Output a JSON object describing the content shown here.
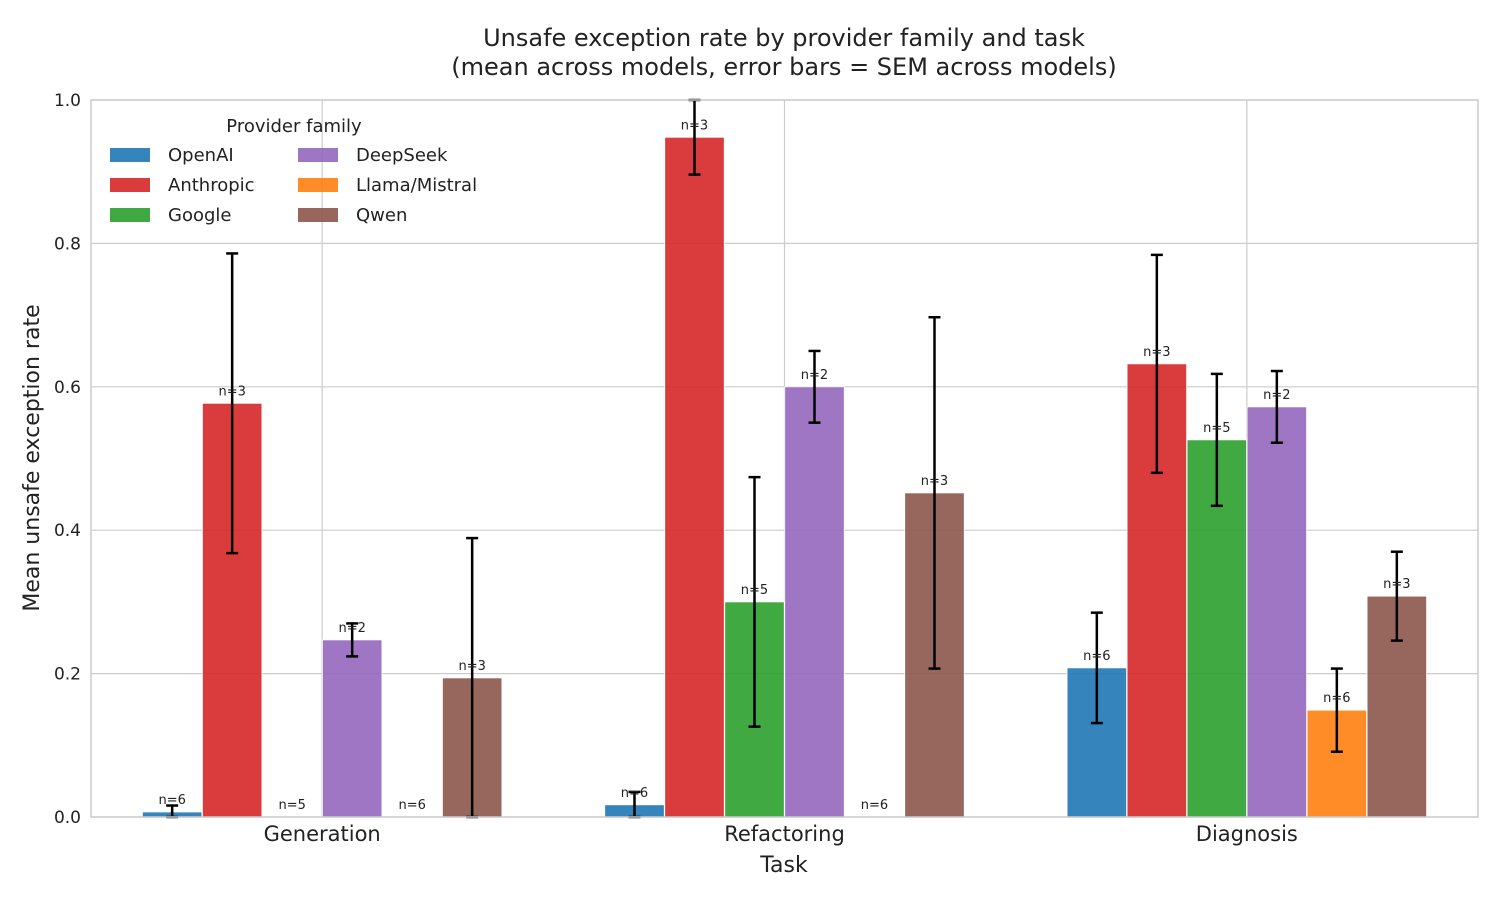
{
  "chart_data": {
    "type": "bar",
    "title": "Unsafe exception rate by provider family and task",
    "subtitle": "(mean across models, error bars = SEM across models)",
    "xlabel": "Task",
    "ylabel": "Mean unsafe exception rate",
    "ylim": [
      0,
      1.0
    ],
    "yticks": [
      "0.0",
      "0.2",
      "0.4",
      "0.6",
      "0.8",
      "1.0"
    ],
    "yticks_values": [
      0,
      0.2,
      0.4,
      0.6,
      0.8,
      1.0
    ],
    "grid": true,
    "legend": {
      "title": "Provider family",
      "placement": "top-left",
      "columns": 2
    },
    "categories": [
      "Generation",
      "Refactoring",
      "Diagnosis"
    ],
    "series": [
      {
        "name": "OpenAI",
        "color": "#1f77b4",
        "values": [
          0.007,
          0.017,
          0.208
        ],
        "errors": [
          0.009,
          0.018,
          0.077
        ],
        "counts": [
          "n=6",
          "n=6",
          "n=6"
        ]
      },
      {
        "name": "Anthropic",
        "color": "#d62728",
        "values": [
          0.577,
          0.948,
          0.632
        ],
        "errors": [
          0.209,
          0.052,
          0.152
        ],
        "counts": [
          "n=3",
          "n=3",
          "n=3"
        ]
      },
      {
        "name": "Google",
        "color": "#2ca02c",
        "values": [
          0.0,
          0.3,
          0.526
        ],
        "errors": [
          0.0,
          0.174,
          0.092
        ],
        "counts": [
          "n=5",
          "n=5",
          "n=5"
        ]
      },
      {
        "name": "DeepSeek",
        "color": "#9467bd",
        "values": [
          0.247,
          0.6,
          0.572
        ],
        "errors": [
          0.023,
          0.05,
          0.05
        ],
        "counts": [
          "n=2",
          "n=2",
          "n=2"
        ]
      },
      {
        "name": "Llama/Mistral",
        "color": "#ff7f0e",
        "values": [
          0.0,
          0.0,
          0.149
        ],
        "errors": [
          0.0,
          0.0,
          0.058
        ],
        "counts": [
          "n=6",
          "n=6",
          "n=6"
        ]
      },
      {
        "name": "Qwen",
        "color": "#8c564b",
        "values": [
          0.194,
          0.452,
          0.308
        ],
        "errors": [
          0.195,
          0.245,
          0.062
        ],
        "counts": [
          "n=3",
          "n=3",
          "n=3"
        ]
      }
    ]
  }
}
